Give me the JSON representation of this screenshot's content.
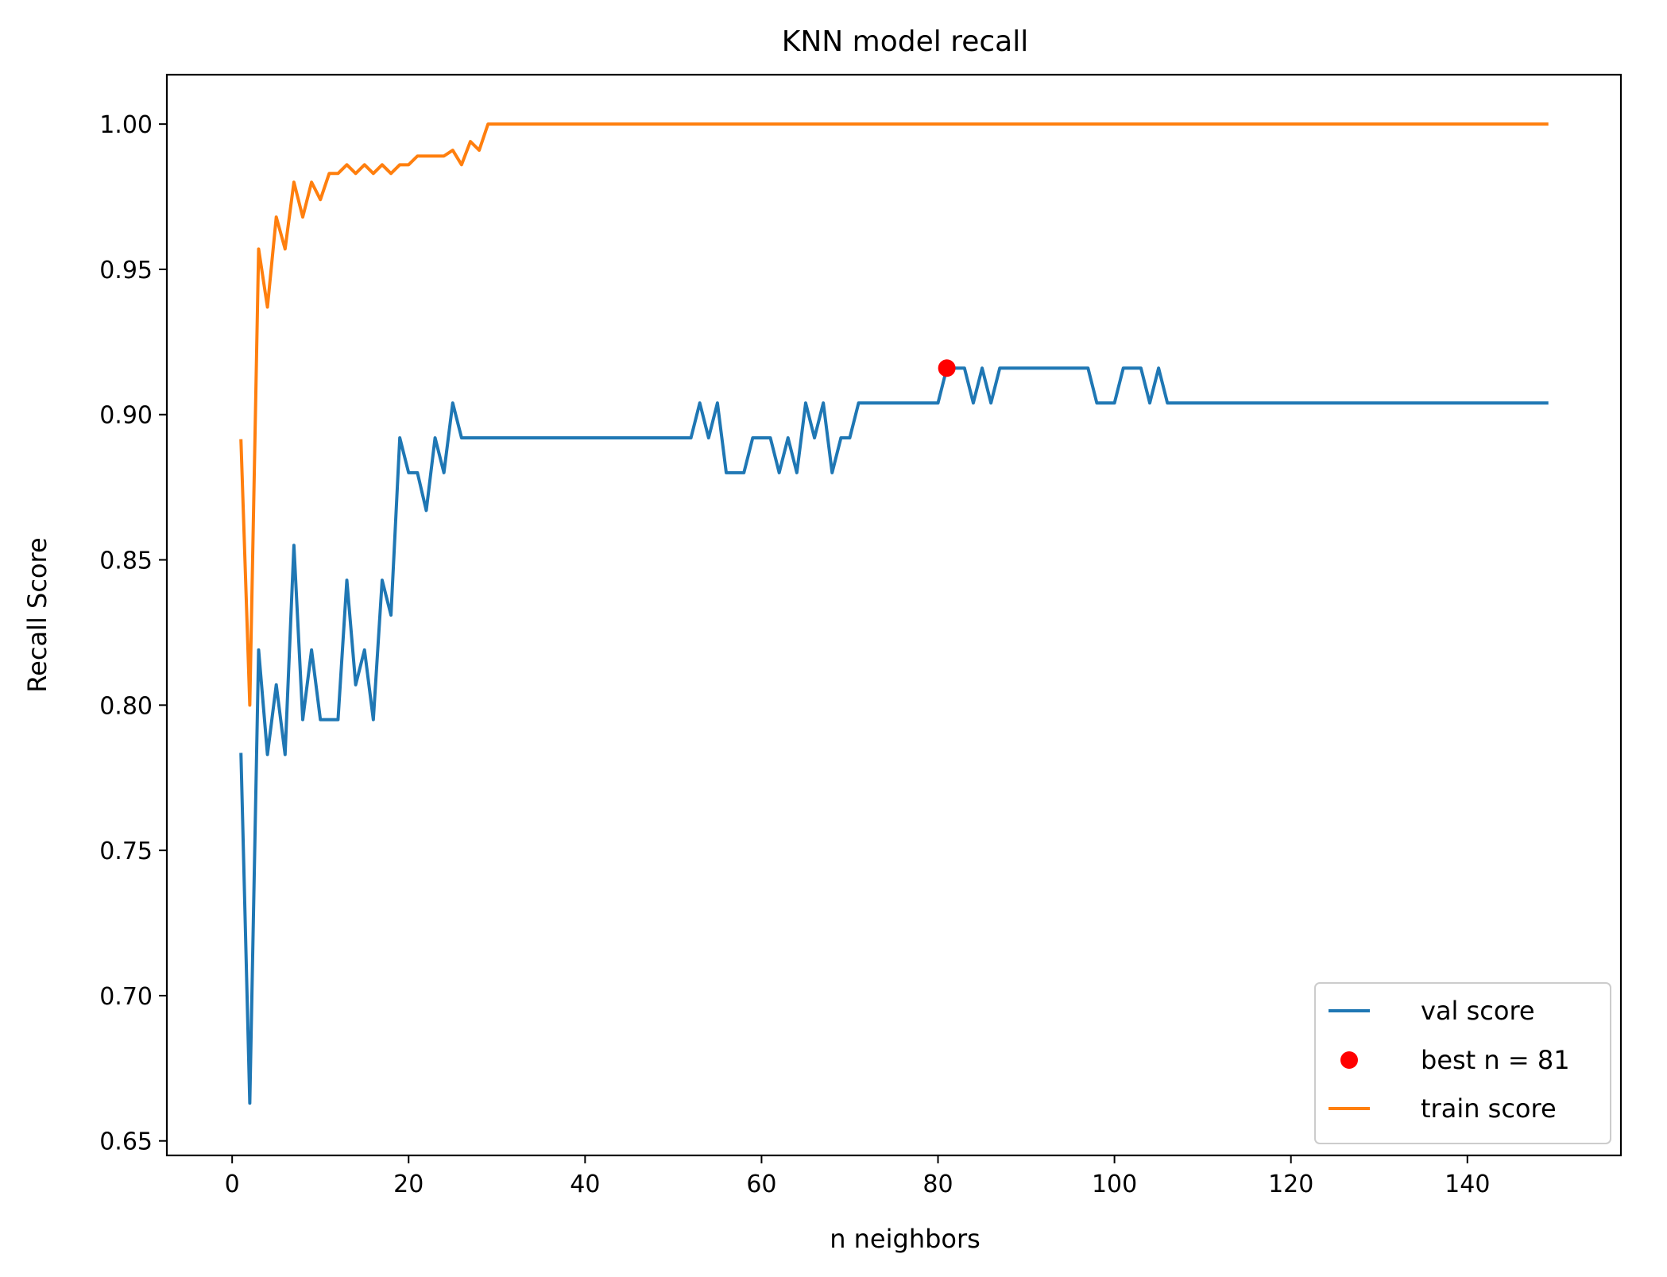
{
  "chart_data": {
    "type": "line",
    "title": "KNN model recall",
    "xlabel": "n neighbors",
    "ylabel": "Recall Score",
    "xlim": [
      -7.4,
      157.4
    ],
    "ylim": [
      0.645,
      1.017
    ],
    "xticks": [
      0,
      20,
      40,
      60,
      80,
      100,
      120,
      140
    ],
    "xtick_labels": [
      "0",
      "20",
      "40",
      "60",
      "80",
      "100",
      "120",
      "140"
    ],
    "yticks": [
      0.65,
      0.7,
      0.75,
      0.8,
      0.85,
      0.9,
      0.95,
      1.0
    ],
    "ytick_labels": [
      "0.65",
      "0.70",
      "0.75",
      "0.80",
      "0.85",
      "0.90",
      "0.95",
      "1.00"
    ],
    "grid": false,
    "legend_position": "bottom-right",
    "series": [
      {
        "name": "val score",
        "color": "#1f77b4",
        "kind": "line",
        "points": [
          [
            1,
            0.783
          ],
          [
            2,
            0.663
          ],
          [
            3,
            0.819
          ],
          [
            4,
            0.783
          ],
          [
            5,
            0.807
          ],
          [
            6,
            0.783
          ],
          [
            7,
            0.855
          ],
          [
            8,
            0.795
          ],
          [
            9,
            0.819
          ],
          [
            10,
            0.795
          ],
          [
            11,
            0.795
          ],
          [
            12,
            0.795
          ],
          [
            13,
            0.843
          ],
          [
            14,
            0.807
          ],
          [
            15,
            0.819
          ],
          [
            16,
            0.795
          ],
          [
            17,
            0.843
          ],
          [
            18,
            0.831
          ],
          [
            19,
            0.892
          ],
          [
            20,
            0.88
          ],
          [
            21,
            0.88
          ],
          [
            22,
            0.867
          ],
          [
            23,
            0.892
          ],
          [
            24,
            0.88
          ],
          [
            25,
            0.904
          ],
          [
            26,
            0.892
          ],
          [
            27,
            0.892
          ],
          [
            52,
            0.892
          ],
          [
            53,
            0.904
          ],
          [
            54,
            0.892
          ],
          [
            55,
            0.904
          ],
          [
            56,
            0.88
          ],
          [
            57,
            0.88
          ],
          [
            58,
            0.88
          ],
          [
            59,
            0.892
          ],
          [
            60,
            0.892
          ],
          [
            61,
            0.892
          ],
          [
            62,
            0.88
          ],
          [
            63,
            0.892
          ],
          [
            64,
            0.88
          ],
          [
            65,
            0.904
          ],
          [
            66,
            0.892
          ],
          [
            67,
            0.904
          ],
          [
            68,
            0.88
          ],
          [
            69,
            0.892
          ],
          [
            70,
            0.892
          ],
          [
            71,
            0.904
          ],
          [
            80,
            0.904
          ],
          [
            81,
            0.916
          ],
          [
            82,
            0.916
          ],
          [
            83,
            0.916
          ],
          [
            84,
            0.904
          ],
          [
            85,
            0.916
          ],
          [
            86,
            0.904
          ],
          [
            87,
            0.916
          ],
          [
            97,
            0.916
          ],
          [
            98,
            0.904
          ],
          [
            99,
            0.904
          ],
          [
            100,
            0.904
          ],
          [
            101,
            0.916
          ],
          [
            102,
            0.916
          ],
          [
            103,
            0.916
          ],
          [
            104,
            0.904
          ],
          [
            105,
            0.916
          ],
          [
            106,
            0.904
          ],
          [
            149,
            0.904
          ]
        ]
      },
      {
        "name": "best n = 81",
        "color": "#ff0000",
        "kind": "marker",
        "points": [
          [
            81,
            0.916
          ]
        ]
      },
      {
        "name": "train score",
        "color": "#ff7f0e",
        "kind": "line",
        "points": [
          [
            1,
            0.891
          ],
          [
            2,
            0.8
          ],
          [
            3,
            0.957
          ],
          [
            4,
            0.937
          ],
          [
            5,
            0.968
          ],
          [
            6,
            0.957
          ],
          [
            7,
            0.98
          ],
          [
            8,
            0.968
          ],
          [
            9,
            0.98
          ],
          [
            10,
            0.974
          ],
          [
            11,
            0.983
          ],
          [
            12,
            0.983
          ],
          [
            13,
            0.986
          ],
          [
            14,
            0.983
          ],
          [
            15,
            0.986
          ],
          [
            16,
            0.983
          ],
          [
            17,
            0.986
          ],
          [
            18,
            0.983
          ],
          [
            19,
            0.986
          ],
          [
            20,
            0.986
          ],
          [
            21,
            0.989
          ],
          [
            22,
            0.989
          ],
          [
            23,
            0.989
          ],
          [
            24,
            0.989
          ],
          [
            25,
            0.991
          ],
          [
            26,
            0.986
          ],
          [
            27,
            0.994
          ],
          [
            28,
            0.991
          ],
          [
            29,
            1.0
          ],
          [
            149,
            1.0
          ]
        ]
      }
    ]
  }
}
